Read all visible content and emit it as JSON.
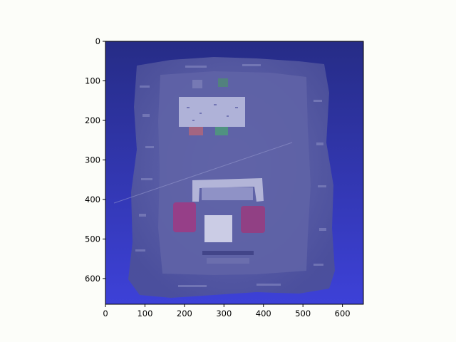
{
  "image": {
    "description_tags": [
      "point-cloud",
      "top-down-room-view"
    ],
    "background_gradient": {
      "top": "#2a2f88",
      "bottom": "#3c3fd6"
    },
    "room_tint": "#5a5fa3"
  },
  "axes": {
    "x_ticks": [
      "0",
      "100",
      "200",
      "300",
      "400",
      "500",
      "600"
    ],
    "y_ticks": [
      "0",
      "100",
      "200",
      "300",
      "400",
      "500",
      "600"
    ],
    "xlim": [
      0,
      653
    ],
    "ylim": [
      0,
      665
    ],
    "y_inverted": true
  }
}
